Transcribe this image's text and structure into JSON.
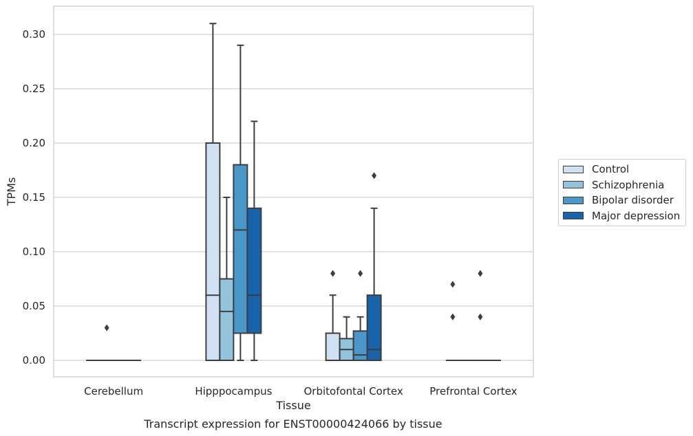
{
  "chart_data": {
    "type": "box",
    "title": "",
    "caption": "Transcript expression for ENST00000424066 by tissue",
    "xlabel": "Tissue",
    "ylabel": "TPMs",
    "ylim": [
      -0.015,
      0.325
    ],
    "yticks": [
      0.0,
      0.05,
      0.1,
      0.15,
      0.2,
      0.25,
      0.3
    ],
    "ytick_labels": [
      "0.00",
      "0.05",
      "0.10",
      "0.15",
      "0.20",
      "0.25",
      "0.30"
    ],
    "grid": "horizontal",
    "legend_position": "right",
    "categories": [
      "Cerebellum",
      "Hipppocampus",
      "Orbitofontal Cortex",
      "Prefrontal Cortex"
    ],
    "series": [
      {
        "name": "Control",
        "color": "#cfe1f2",
        "boxes": [
          {
            "whisker_low": 0.0,
            "q1": 0.0,
            "median": 0.0,
            "q3": 0.0,
            "whisker_high": 0.0,
            "outliers": []
          },
          {
            "whisker_low": 0.0,
            "q1": 0.0,
            "median": 0.06,
            "q3": 0.2,
            "whisker_high": 0.31,
            "outliers": []
          },
          {
            "whisker_low": 0.0,
            "q1": 0.0,
            "median": 0.0,
            "q3": 0.025,
            "whisker_high": 0.06,
            "outliers": [
              0.08
            ]
          },
          {
            "whisker_low": 0.0,
            "q1": 0.0,
            "median": 0.0,
            "q3": 0.0,
            "whisker_high": 0.0,
            "outliers": [
              0.04,
              0.07
            ]
          }
        ]
      },
      {
        "name": "Schizophrenia",
        "color": "#93c4de",
        "boxes": [
          {
            "whisker_low": 0.0,
            "q1": 0.0,
            "median": 0.0,
            "q3": 0.0,
            "whisker_high": 0.0,
            "outliers": [
              0.03
            ]
          },
          {
            "whisker_low": 0.0,
            "q1": 0.0,
            "median": 0.045,
            "q3": 0.075,
            "whisker_high": 0.15,
            "outliers": []
          },
          {
            "whisker_low": 0.0,
            "q1": 0.0,
            "median": 0.01,
            "q3": 0.02,
            "whisker_high": 0.04,
            "outliers": []
          },
          {
            "whisker_low": 0.0,
            "q1": 0.0,
            "median": 0.0,
            "q3": 0.0,
            "whisker_high": 0.0,
            "outliers": []
          }
        ]
      },
      {
        "name": "Bipolar disorder",
        "color": "#4a98c9",
        "boxes": [
          {
            "whisker_low": 0.0,
            "q1": 0.0,
            "median": 0.0,
            "q3": 0.0,
            "whisker_high": 0.0,
            "outliers": []
          },
          {
            "whisker_low": 0.0,
            "q1": 0.025,
            "median": 0.12,
            "q3": 0.18,
            "whisker_high": 0.29,
            "outliers": []
          },
          {
            "whisker_low": 0.0,
            "q1": 0.0,
            "median": 0.005,
            "q3": 0.027,
            "whisker_high": 0.04,
            "outliers": [
              0.08
            ]
          },
          {
            "whisker_low": 0.0,
            "q1": 0.0,
            "median": 0.0,
            "q3": 0.0,
            "whisker_high": 0.0,
            "outliers": [
              0.04,
              0.08
            ]
          }
        ]
      },
      {
        "name": "Major depression",
        "color": "#1764ab",
        "boxes": [
          {
            "whisker_low": 0.0,
            "q1": 0.0,
            "median": 0.0,
            "q3": 0.0,
            "whisker_high": 0.0,
            "outliers": []
          },
          {
            "whisker_low": 0.0,
            "q1": 0.025,
            "median": 0.06,
            "q3": 0.14,
            "whisker_high": 0.22,
            "outliers": []
          },
          {
            "whisker_low": 0.0,
            "q1": 0.0,
            "median": 0.01,
            "q3": 0.06,
            "whisker_high": 0.14,
            "outliers": [
              0.17
            ]
          },
          {
            "whisker_low": 0.0,
            "q1": 0.0,
            "median": 0.0,
            "q3": 0.0,
            "whisker_high": 0.0,
            "outliers": []
          }
        ]
      }
    ]
  }
}
